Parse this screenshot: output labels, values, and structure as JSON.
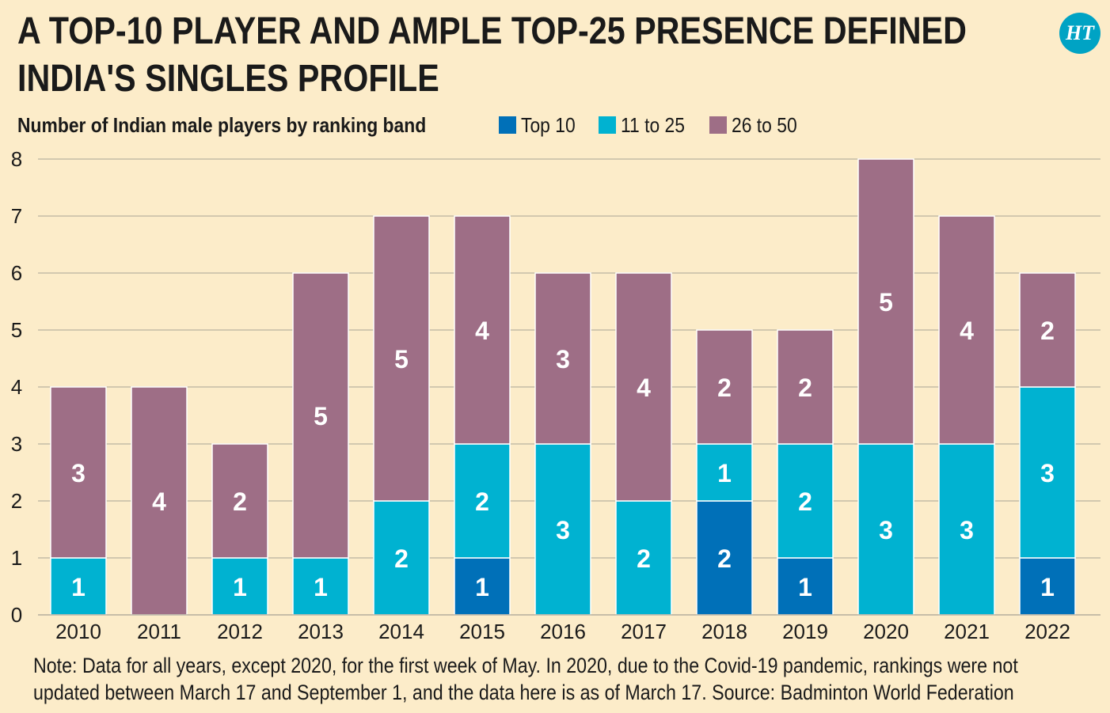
{
  "header": {
    "title_line1": "A TOP-10 PLAYER AND AMPLE TOP-25 PRESENCE DEFINED",
    "title_line2": "INDIA'S SINGLES PROFILE",
    "logo_text": "HT"
  },
  "colors": {
    "background": "#fcecc9",
    "top10": "#0070b8",
    "band11_25": "#00b2d1",
    "band26_50": "#9e6e86",
    "grid": "#b9b2a0",
    "label": "#ffffff",
    "text": "#1a1a1a"
  },
  "chart_data": {
    "type": "bar",
    "stacked": true,
    "title": "Number of Indian male players by ranking band",
    "xlabel": "",
    "ylabel": "",
    "ylim": [
      0,
      8
    ],
    "yticks": [
      "0",
      "1",
      "2",
      "3",
      "4",
      "5",
      "6",
      "7",
      "8"
    ],
    "grid": true,
    "legend_position": "top",
    "categories": [
      "2010",
      "2011",
      "2012",
      "2013",
      "2014",
      "2015",
      "2016",
      "2017",
      "2018",
      "2019",
      "2020",
      "2021",
      "2022"
    ],
    "series": [
      {
        "name": "Top 10",
        "key": "top10",
        "values": [
          0,
          0,
          0,
          0,
          0,
          1,
          0,
          0,
          2,
          1,
          0,
          0,
          1
        ]
      },
      {
        "name": "11 to 25",
        "key": "band11_25",
        "values": [
          1,
          0,
          1,
          1,
          2,
          2,
          3,
          2,
          1,
          2,
          3,
          3,
          3
        ]
      },
      {
        "name": "26 to 50",
        "key": "band26_50",
        "values": [
          3,
          4,
          2,
          5,
          5,
          4,
          3,
          4,
          2,
          2,
          5,
          4,
          2
        ]
      }
    ]
  },
  "footer": {
    "note_line1": "Note: Data for all years, except 2020, for the first week of May. In 2020, due to the Covid-19 pandemic, rankings were not",
    "note_line2": "updated between March 17 and September 1, and the data here is as of March 17.  Source: Badminton World Federation"
  }
}
